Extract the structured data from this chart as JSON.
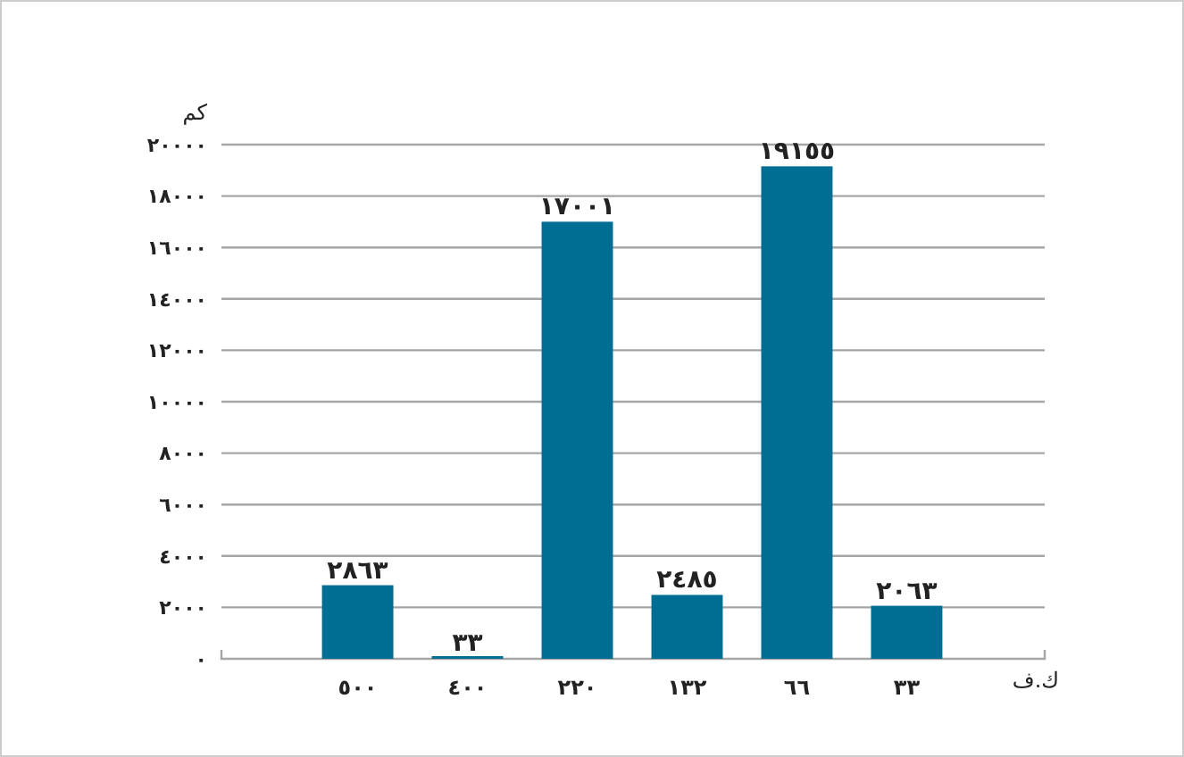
{
  "chart_data": {
    "type": "bar",
    "ylabel": "كم",
    "xlabel": "ك.ف",
    "categories": [
      "٥٠٠",
      "٤٠٠",
      "٢٢٠",
      "١٣٢",
      "٦٦",
      "٣٣"
    ],
    "values": [
      2863,
      33,
      17001,
      2485,
      19155,
      2063
    ],
    "value_labels": [
      "٢٨٦٣",
      "٣٣",
      "١٧٠٠١",
      "٢٤٨٥",
      "١٩١٥٥",
      "٢٠٦٣"
    ],
    "color": "#006e93",
    "ylim": [
      0,
      20000
    ],
    "yticks": [
      {
        "value": 0,
        "label": "٠"
      },
      {
        "value": 2000,
        "label": "٢٠٠٠"
      },
      {
        "value": 4000,
        "label": "٤٠٠٠"
      },
      {
        "value": 6000,
        "label": "٦٠٠٠"
      },
      {
        "value": 8000,
        "label": "٨٠٠٠"
      },
      {
        "value": 10000,
        "label": "١٠٠٠٠"
      },
      {
        "value": 12000,
        "label": "١٢٠٠٠"
      },
      {
        "value": 14000,
        "label": "١٤٠٠٠"
      },
      {
        "value": 16000,
        "label": "١٦٠٠٠"
      },
      {
        "value": 18000,
        "label": "١٨٠٠٠"
      },
      {
        "value": 20000,
        "label": "٢٠٠٠٠"
      }
    ],
    "grid": "y"
  }
}
